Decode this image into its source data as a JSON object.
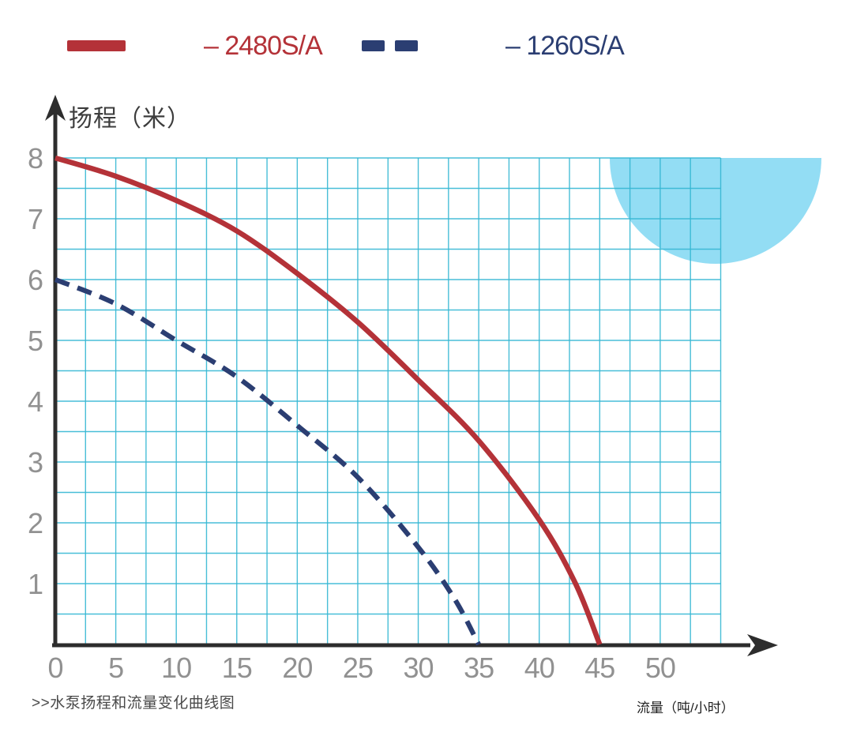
{
  "legend": {
    "items": [
      {
        "label": "– 2480S/A",
        "color": "#b43238",
        "style": "solid"
      },
      {
        "label": "– 1260S/A",
        "color": "#2b3e72",
        "style": "dashed"
      }
    ]
  },
  "titles": {
    "y_axis_title": "扬程（米）",
    "x_axis_title": "流量（吨/小时）",
    "caption": ">>水泵扬程和流量变化曲线图"
  },
  "colors": {
    "grid": "#35b7d3",
    "axis": "#2d2d2d",
    "tick_label": "#919191",
    "decor_circle": "#93ddf4",
    "series_2480": "#b43238",
    "series_1260": "#2b3e72"
  },
  "chart_data": {
    "type": "line",
    "title": "",
    "xlabel": "流量（吨/小时）",
    "ylabel": "扬程（米）",
    "xlim": [
      0,
      55
    ],
    "ylim": [
      0,
      8
    ],
    "x_ticks": [
      0,
      5,
      10,
      15,
      20,
      25,
      30,
      35,
      40,
      45,
      50
    ],
    "y_ticks": [
      1,
      2,
      3,
      4,
      5,
      6,
      7,
      8
    ],
    "grid": {
      "on": true,
      "x_step": 2.5,
      "y_step": 0.5
    },
    "legend_position": "top",
    "series": [
      {
        "name": "2480S/A",
        "line_style": "solid",
        "points": [
          [
            0,
            8.0
          ],
          [
            5,
            7.7
          ],
          [
            10,
            7.3
          ],
          [
            15,
            6.8
          ],
          [
            20,
            6.1
          ],
          [
            25,
            5.3
          ],
          [
            30,
            4.35
          ],
          [
            35,
            3.35
          ],
          [
            40,
            2.05
          ],
          [
            43,
            1.0
          ],
          [
            45,
            0
          ]
        ]
      },
      {
        "name": "1260S/A",
        "line_style": "dashed",
        "points": [
          [
            0,
            6.0
          ],
          [
            5,
            5.6
          ],
          [
            10,
            5.0
          ],
          [
            15,
            4.4
          ],
          [
            20,
            3.6
          ],
          [
            25,
            2.75
          ],
          [
            30,
            1.6
          ],
          [
            33,
            0.75
          ],
          [
            35,
            0
          ]
        ]
      }
    ]
  }
}
